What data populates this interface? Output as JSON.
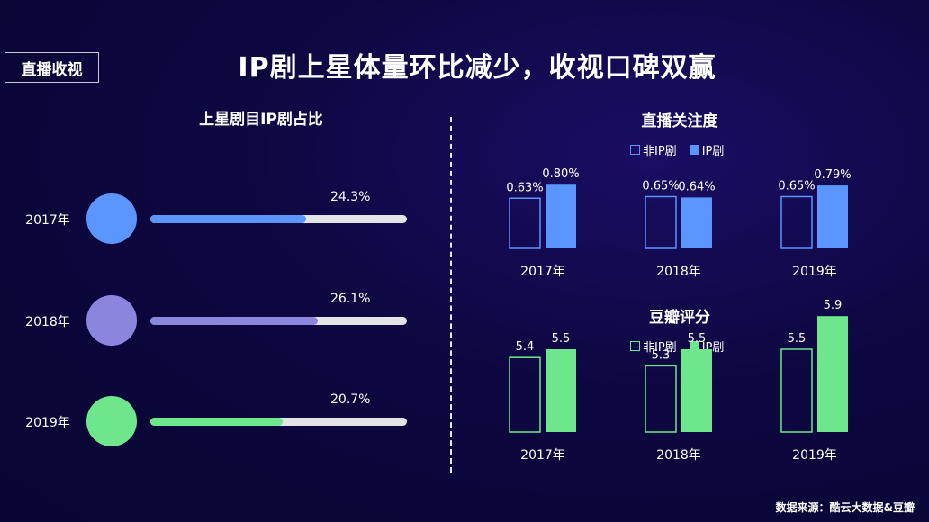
{
  "tag": "直播收视",
  "title": "IP剧上星体量环比减少，收视口碑双赢",
  "source": "数据来源：酷云大数据&豆瓣",
  "colors": {
    "blue_light": "#5b95ff",
    "purple": "#8c85de",
    "green": "#6ee78c",
    "track": "#e3e3e8"
  },
  "chart_data": [
    {
      "type": "bar",
      "orientation": "horizontal",
      "title": "上星剧目IP剧占比",
      "categories": [
        "2017年",
        "2018年",
        "2019年"
      ],
      "values": [
        24.3,
        26.1,
        20.7
      ],
      "value_labels": [
        "24.3%",
        "26.1%",
        "20.7%"
      ],
      "xlim": [
        0,
        40
      ],
      "colors": [
        "#5b95ff",
        "#8c85de",
        "#6ee78c"
      ]
    },
    {
      "type": "bar",
      "title": "直播关注度",
      "categories": [
        "2017年",
        "2018年",
        "2019年"
      ],
      "legend": [
        "非IP剧",
        "IP剧"
      ],
      "legend_position": "top",
      "series": [
        {
          "name": "非IP剧",
          "values": [
            0.63,
            0.65,
            0.65
          ],
          "labels": [
            "0.63%",
            "0.65%",
            "0.65%"
          ],
          "style": "outline"
        },
        {
          "name": "IP剧",
          "values": [
            0.8,
            0.64,
            0.79
          ],
          "labels": [
            "0.80%",
            "0.64%",
            "0.79%"
          ],
          "style": "filled"
        }
      ],
      "color": "#5b95ff",
      "ylim": [
        0,
        1.3
      ]
    },
    {
      "type": "bar",
      "title": "豆瓣评分",
      "categories": [
        "2017年",
        "2018年",
        "2019年"
      ],
      "legend": [
        "非IP剧",
        "IP剧"
      ],
      "legend_position": "top",
      "series": [
        {
          "name": "非IP剧",
          "values": [
            5.4,
            5.3,
            5.5
          ],
          "labels": [
            "5.4",
            "5.3",
            "5.5"
          ],
          "style": "outline"
        },
        {
          "name": "IP剧",
          "values": [
            5.5,
            5.5,
            5.9
          ],
          "labels": [
            "5.5",
            "5.5",
            "5.9"
          ],
          "style": "filled"
        }
      ],
      "color": "#6ee78c",
      "ylim": [
        4.5,
        6.0
      ]
    }
  ]
}
